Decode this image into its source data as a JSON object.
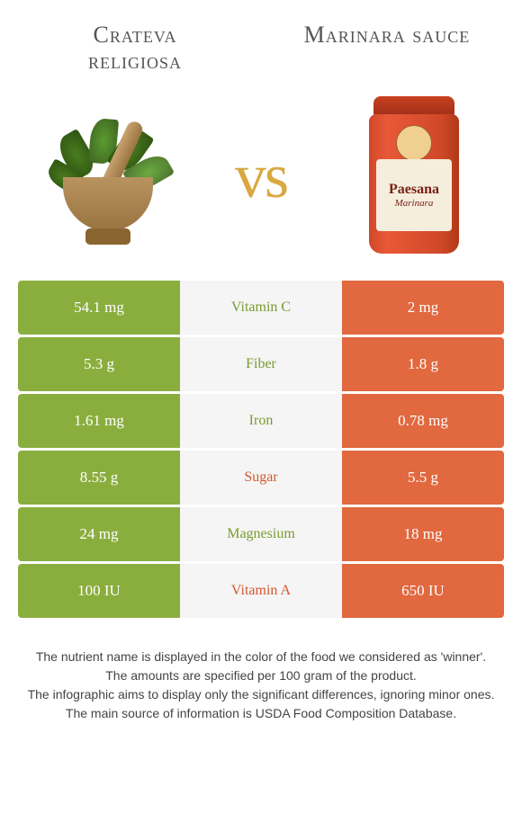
{
  "left_food": {
    "name": "Crateva religiosa"
  },
  "right_food": {
    "name": "Marinara sauce"
  },
  "vs_text": "vs",
  "jar": {
    "brand": "Paesana",
    "type": "Marinara"
  },
  "colors": {
    "left_bg": "#8aae3e",
    "right_bg": "#e1683f",
    "mid_bg": "#f5f5f5",
    "left_win_text": "#7a9c2f",
    "right_win_text": "#d1582f"
  },
  "rows": [
    {
      "nutrient": "Vitamin C",
      "left": "54.1 mg",
      "right": "2 mg",
      "winner": "left"
    },
    {
      "nutrient": "Fiber",
      "left": "5.3 g",
      "right": "1.8 g",
      "winner": "left"
    },
    {
      "nutrient": "Iron",
      "left": "1.61 mg",
      "right": "0.78 mg",
      "winner": "left"
    },
    {
      "nutrient": "Sugar",
      "left": "8.55 g",
      "right": "5.5 g",
      "winner": "right"
    },
    {
      "nutrient": "Magnesium",
      "left": "24 mg",
      "right": "18 mg",
      "winner": "left"
    },
    {
      "nutrient": "Vitamin A",
      "left": "100 IU",
      "right": "650 IU",
      "winner": "right"
    }
  ],
  "footer_lines": [
    "The nutrient name is displayed in the color of the food we considered as 'winner'.",
    "The amounts are specified per 100 gram of the product.",
    "The infographic aims to display only the significant differences, ignoring minor ones.",
    "The main source of information is USDA Food Composition Database."
  ]
}
